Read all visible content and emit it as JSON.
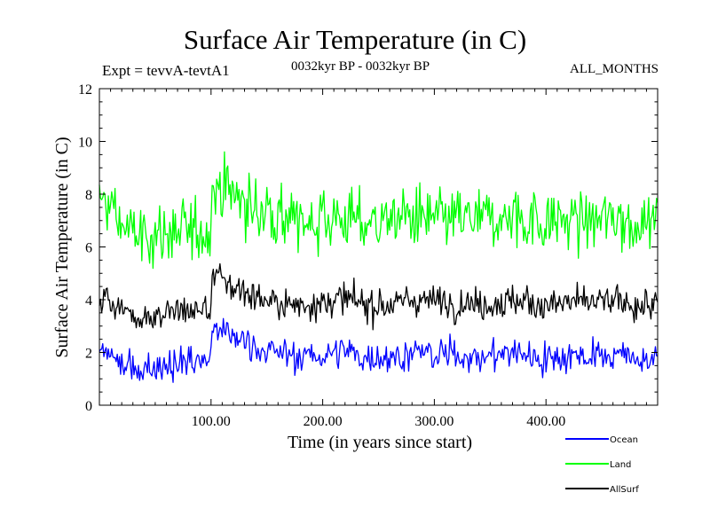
{
  "header": {
    "title": "Surface Air Temperature (in C)",
    "experiment": "Expt = tevvA-tevtA1",
    "period": "0032kyr BP - 0032kyr BP",
    "months": "ALL_MONTHS"
  },
  "chart_data": {
    "type": "line",
    "xlabel": "Time (in years since start)",
    "ylabel": "Surface Air Temperature (in C)",
    "xlim": [
      0,
      500
    ],
    "ylim": [
      0,
      12
    ],
    "x_ticks": [
      100,
      200,
      300,
      400
    ],
    "x_tick_labels": [
      "100.00",
      "200.00",
      "300.00",
      "400.00"
    ],
    "y_ticks": [
      0,
      2,
      4,
      6,
      8,
      10,
      12
    ],
    "y_tick_labels": [
      "0",
      "2",
      "4",
      "6",
      "8",
      "10",
      "12"
    ],
    "grid": false,
    "legend_position": "bottom-right",
    "series": [
      {
        "name": "Ocean",
        "color": "#0000ff",
        "x": [
          0,
          10,
          20,
          30,
          40,
          50,
          60,
          70,
          80,
          90,
          99,
          100,
          101,
          110,
          120,
          130,
          140,
          150,
          160,
          170,
          180,
          190,
          200,
          210,
          220,
          230,
          240,
          250,
          260,
          270,
          280,
          290,
          300,
          310,
          320,
          330,
          340,
          350,
          360,
          370,
          380,
          390,
          400,
          410,
          420,
          430,
          440,
          450,
          460,
          470,
          480,
          490,
          500
        ],
        "values": [
          2.1,
          1.9,
          1.5,
          1.3,
          1.4,
          1.5,
          1.6,
          1.6,
          1.7,
          1.7,
          1.7,
          2.2,
          3.0,
          2.8,
          2.6,
          2.4,
          2.2,
          2.1,
          2.0,
          1.9,
          1.8,
          1.9,
          1.9,
          2.0,
          2.0,
          1.9,
          1.8,
          1.9,
          1.8,
          1.9,
          2.0,
          2.0,
          1.9,
          1.9,
          1.9,
          1.9,
          1.8,
          1.9,
          1.9,
          2.0,
          2.0,
          1.8,
          1.8,
          1.8,
          1.9,
          1.9,
          1.9,
          1.9,
          1.9,
          1.9,
          1.8,
          1.7,
          1.7
        ],
        "noise": 0.55
      },
      {
        "name": "Land",
        "color": "#00ff00",
        "x": [
          0,
          10,
          20,
          30,
          40,
          50,
          60,
          70,
          80,
          90,
          99,
          100,
          101,
          110,
          120,
          130,
          140,
          150,
          160,
          170,
          180,
          190,
          200,
          210,
          220,
          230,
          240,
          250,
          260,
          270,
          280,
          290,
          300,
          310,
          320,
          330,
          340,
          350,
          360,
          370,
          380,
          390,
          400,
          410,
          420,
          430,
          440,
          450,
          460,
          470,
          480,
          490,
          500
        ],
        "values": [
          7.8,
          7.5,
          6.8,
          6.5,
          6.4,
          6.4,
          6.5,
          6.5,
          6.6,
          6.6,
          6.6,
          7.5,
          8.3,
          8.2,
          8.0,
          7.7,
          7.4,
          7.3,
          7.1,
          7.0,
          6.9,
          7.0,
          7.0,
          7.1,
          7.1,
          7.0,
          6.9,
          7.0,
          7.0,
          7.1,
          7.1,
          7.1,
          7.0,
          7.0,
          7.0,
          7.0,
          7.0,
          7.0,
          7.0,
          7.1,
          7.1,
          7.0,
          7.0,
          7.0,
          7.0,
          7.0,
          7.0,
          7.0,
          7.1,
          7.0,
          7.0,
          7.0,
          7.0
        ],
        "noise": 1.05
      },
      {
        "name": "AllSurf",
        "color": "#000000",
        "x": [
          0,
          10,
          20,
          30,
          40,
          50,
          60,
          70,
          80,
          90,
          99,
          100,
          101,
          110,
          120,
          130,
          140,
          150,
          160,
          170,
          180,
          190,
          200,
          210,
          220,
          230,
          240,
          250,
          260,
          270,
          280,
          290,
          300,
          310,
          320,
          330,
          340,
          350,
          360,
          370,
          380,
          390,
          400,
          410,
          420,
          430,
          440,
          450,
          460,
          470,
          480,
          490,
          500
        ],
        "values": [
          4.1,
          4.0,
          3.6,
          3.4,
          3.4,
          3.4,
          3.5,
          3.5,
          3.6,
          3.6,
          3.6,
          4.1,
          4.9,
          4.7,
          4.5,
          4.3,
          4.1,
          4.0,
          3.9,
          3.8,
          3.8,
          3.9,
          3.9,
          4.0,
          4.0,
          3.9,
          3.8,
          3.8,
          3.8,
          3.9,
          4.0,
          4.0,
          3.9,
          3.9,
          3.9,
          3.9,
          3.8,
          3.9,
          3.9,
          4.0,
          4.0,
          3.8,
          3.8,
          3.8,
          3.9,
          3.9,
          3.9,
          3.9,
          3.9,
          3.9,
          3.8,
          3.8,
          3.8
        ],
        "noise": 0.55
      }
    ]
  }
}
